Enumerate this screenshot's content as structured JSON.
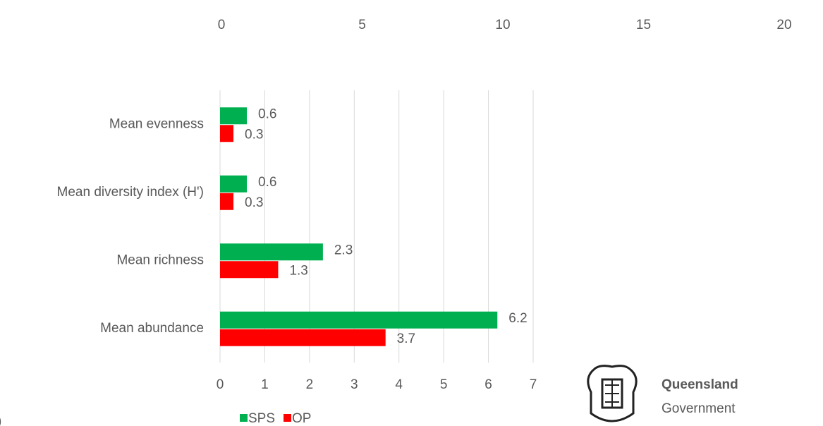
{
  "chart_data": {
    "type": "bar",
    "orientation": "horizontal",
    "categories": [
      "Mean evenness",
      "Mean diversity index (H')",
      "Mean richness",
      "Mean abundance"
    ],
    "series": [
      {
        "name": "SPS",
        "color": "#00b050",
        "values": [
          0.6,
          0.6,
          2.3,
          6.2
        ]
      },
      {
        "name": "OP",
        "color": "#ff0000",
        "values": [
          0.3,
          0.3,
          1.3,
          3.7
        ]
      }
    ],
    "xlim": [
      0,
      7
    ],
    "xticks": [
      0,
      1,
      2,
      3,
      4,
      5,
      6,
      7
    ],
    "x2lim": [
      0,
      20
    ],
    "x2ticks": [
      0,
      5,
      10,
      15,
      20
    ],
    "grid": true,
    "legend": "bottom",
    "annotation": ")"
  },
  "logo": {
    "line1": "Queensland",
    "line2": "Government"
  }
}
